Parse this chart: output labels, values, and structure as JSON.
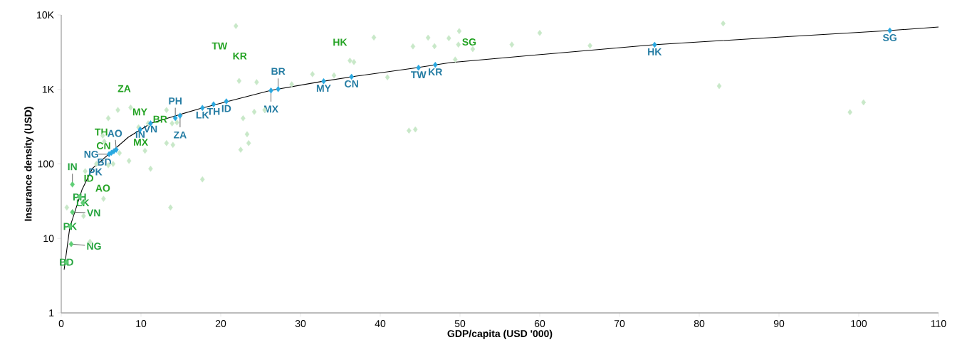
{
  "chart_data": {
    "type": "scatter",
    "xlabel": "GDP/capita (USD '000)",
    "ylabel": "Insurance density (USD)",
    "xlim": [
      0,
      110
    ],
    "xticks": [
      0,
      10,
      20,
      30,
      40,
      50,
      60,
      70,
      80,
      90,
      100,
      110
    ],
    "ylim": [
      1,
      10000
    ],
    "yticks": [
      1,
      10,
      100,
      {
        "value": 1000,
        "label": "1K"
      },
      {
        "value": 10000,
        "label": "10K"
      }
    ],
    "log": true,
    "marker": "diamond",
    "series": [
      {
        "color": "#c8e8c8",
        "x": [
          21.9,
          22.3,
          24.5,
          7.1,
          8.7,
          5.9,
          13.2,
          24.2,
          22.8,
          23.3,
          23.5,
          22.5,
          9.7,
          10.9,
          13.9,
          14.5,
          5.2,
          13.2,
          14.0,
          5.4,
          10.5,
          7.3,
          8.5,
          6.5,
          5.9,
          4.4,
          11.2,
          3.0,
          17.7,
          5.3,
          0.7,
          2.8,
          13.7,
          3.6,
          25.5,
          28.9,
          31.5,
          34.2,
          36.2,
          36.7,
          39.2,
          40.9,
          44.1,
          46.0,
          46.8,
          48.6,
          49.9,
          49.8,
          51.6,
          49.4,
          43.6,
          44.4,
          56.5,
          60.0,
          66.3,
          83.0,
          82.5,
          98.9,
          100.6
        ],
        "values": [
          7100,
          1300,
          1250,
          530,
          570,
          410,
          530,
          500,
          410,
          250,
          190,
          155,
          310,
          350,
          350,
          360,
          240,
          190,
          180,
          200,
          150,
          140,
          110,
          100,
          96,
          100,
          86,
          80,
          62,
          34,
          26,
          20,
          26,
          9,
          530,
          1170,
          1600,
          1540,
          2430,
          2330,
          4980,
          1455,
          3780,
          4950,
          3800,
          4880,
          6070,
          4000,
          3480,
          2520,
          280,
          290,
          4000,
          5730,
          3870,
          7680,
          1110,
          494,
          671
        ]
      },
      {
        "color": "#5fcf75",
        "x": [
          1.4,
          1.4,
          1.25,
          2.3,
          2.7,
          1.1,
          0.65
        ],
        "values": [
          53,
          22.5,
          8.4,
          36,
          30,
          14.5,
          4.8
        ]
      },
      {
        "color": "#29a8e0",
        "x": [
          6.0,
          6.3,
          6.6,
          6.9,
          14.3,
          14.9,
          26.3,
          27.2,
          9.9,
          11.2,
          17.7,
          19.1,
          20.7,
          32.9,
          36.4,
          44.8,
          46.9,
          74.4,
          103.9
        ],
        "values": [
          135,
          141,
          148,
          155,
          413,
          444,
          966,
          1010,
          290,
          350,
          565,
          630,
          690,
          1290,
          1480,
          1960,
          2140,
          3980,
          6180
        ]
      },
      {
        "type": "line",
        "color": "#000000",
        "marker": "none",
        "x": [
          0.36,
          1.07,
          2.6,
          3.9,
          8.4,
          11.3,
          14.3,
          17.3,
          21.8,
          26.3,
          32.5,
          37.0,
          44.1,
          48.8,
          54.8,
          74.2,
          88.8,
          103.8,
          110
        ],
        "values": [
          3.8,
          14,
          45,
          87,
          228,
          354,
          441,
          550,
          731,
          973,
          1270,
          1510,
          1920,
          2290,
          2620,
          3970,
          4950,
          6170,
          6890
        ]
      }
    ],
    "annotations": [
      {
        "text": "TW",
        "x": 21.9,
        "y": 7100
      },
      {
        "text": "KR",
        "x": 22.3,
        "y": 1300
      },
      {
        "text": "ZA",
        "x": 7.1,
        "y": 530
      },
      {
        "text": "MY",
        "x": 8.7,
        "y": 570
      },
      {
        "text": "BR",
        "x": 13.2,
        "y": 530
      },
      {
        "text": "TH",
        "x": 5.2,
        "y": 240
      },
      {
        "text": "CN",
        "x": 5.4,
        "y": 200
      },
      {
        "text": "MX",
        "x": 10.5,
        "y": 150
      },
      {
        "text": "IN",
        "x": 1.4,
        "y": 53
      },
      {
        "text": "ID",
        "x": 3.0,
        "y": 80
      },
      {
        "text": "AO",
        "x": 5.3,
        "y": 34
      },
      {
        "text": "PH",
        "x": 2.3,
        "y": 36
      },
      {
        "text": "LK",
        "x": 2.7,
        "y": 30
      },
      {
        "text": "VN",
        "x": 1.4,
        "y": 22.5
      },
      {
        "text": "PK",
        "x": 1.1,
        "y": 14.5
      },
      {
        "text": "NG",
        "x": 1.25,
        "y": 8.4
      },
      {
        "text": "BD",
        "x": 0.65,
        "y": 4.8
      },
      {
        "text": "HK",
        "x": 36.2,
        "y": 2430
      },
      {
        "text": "SG",
        "x": 51.6,
        "y": 3480
      },
      {
        "text": "AO",
        "x": 6.9,
        "y": 155
      },
      {
        "text": "NG",
        "x": 6.0,
        "y": 135
      },
      {
        "text": "BD",
        "x": 6.3,
        "y": 141
      },
      {
        "text": "PK",
        "x": 6.6,
        "y": 148
      },
      {
        "text": "IN",
        "x": 9.9,
        "y": 290
      },
      {
        "text": "VN",
        "x": 11.2,
        "y": 350
      },
      {
        "text": "PH",
        "x": 14.3,
        "y": 413
      },
      {
        "text": "ZA",
        "x": 14.9,
        "y": 444
      },
      {
        "text": "LK",
        "x": 17.7,
        "y": 565
      },
      {
        "text": "TH",
        "x": 19.1,
        "y": 630
      },
      {
        "text": "ID",
        "x": 20.7,
        "y": 690
      },
      {
        "text": "BR",
        "x": 27.2,
        "y": 1010
      },
      {
        "text": "MX",
        "x": 26.3,
        "y": 966
      },
      {
        "text": "MY",
        "x": 32.9,
        "y": 1290
      },
      {
        "text": "CN",
        "x": 36.4,
        "y": 1480
      },
      {
        "text": "TW",
        "x": 44.8,
        "y": 1960
      },
      {
        "text": "KR",
        "x": 46.9,
        "y": 2140
      },
      {
        "text": "HK",
        "x": 74.4,
        "y": 3980
      },
      {
        "text": "SG",
        "x": 103.9,
        "y": 6180
      }
    ]
  }
}
